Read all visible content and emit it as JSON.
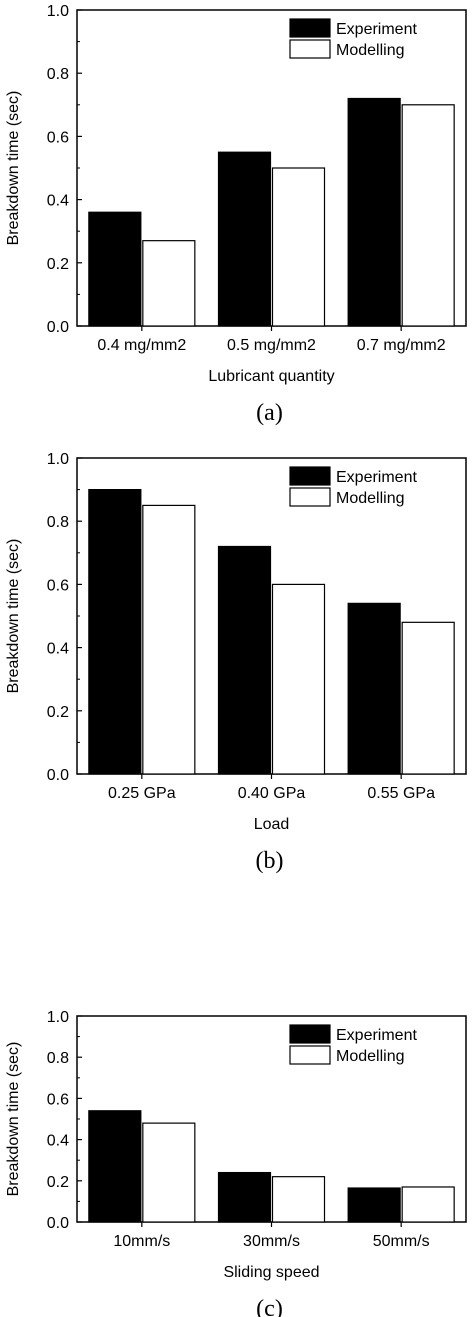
{
  "chart_data": [
    {
      "type": "bar",
      "categories": [
        "0.4 mg/mm2",
        "0.5 mg/mm2",
        "0.7 mg/mm2"
      ],
      "series": [
        {
          "name": "Experiment",
          "values": [
            0.36,
            0.55,
            0.72
          ],
          "color": "#000000"
        },
        {
          "name": "Modelling",
          "values": [
            0.27,
            0.5,
            0.7
          ],
          "color": "#ffffff"
        }
      ],
      "xlabel": "Lubricant quantity",
      "ylabel": "Breakdown time (sec)",
      "ylim": [
        0,
        1.0
      ],
      "yticks": [
        "0.0",
        "0.2",
        "0.4",
        "0.6",
        "0.8",
        "1.0"
      ],
      "legend_position": "top-right",
      "caption": "(a)"
    },
    {
      "type": "bar",
      "categories": [
        "0.25 GPa",
        "0.40 GPa",
        "0.55 GPa"
      ],
      "series": [
        {
          "name": "Experiment",
          "values": [
            0.9,
            0.72,
            0.54
          ],
          "color": "#000000"
        },
        {
          "name": "Modelling",
          "values": [
            0.85,
            0.6,
            0.48
          ],
          "color": "#ffffff"
        }
      ],
      "xlabel": "Load",
      "ylabel": "Breakdown time (sec)",
      "ylim": [
        0,
        1.0
      ],
      "yticks": [
        "0.0",
        "0.2",
        "0.4",
        "0.6",
        "0.8",
        "1.0"
      ],
      "legend_position": "top-right",
      "caption": "(b)"
    },
    {
      "type": "bar",
      "categories": [
        "10mm/s",
        "30mm/s",
        "50mm/s"
      ],
      "series": [
        {
          "name": "Experiment",
          "values": [
            0.54,
            0.24,
            0.165
          ],
          "color": "#000000"
        },
        {
          "name": "Modelling",
          "values": [
            0.48,
            0.22,
            0.17
          ],
          "color": "#ffffff"
        }
      ],
      "xlabel": "Sliding speed",
      "ylabel": "Breakdown time (sec)",
      "ylim": [
        0,
        1.0
      ],
      "yticks": [
        "0.0",
        "0.2",
        "0.4",
        "0.6",
        "0.8",
        "1.0"
      ],
      "legend_position": "top-right",
      "caption": "(c)"
    }
  ]
}
